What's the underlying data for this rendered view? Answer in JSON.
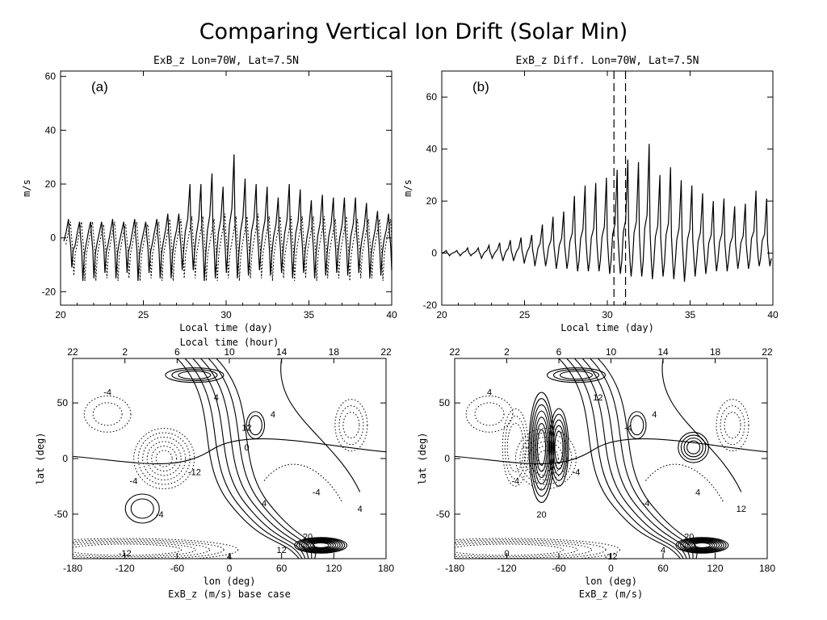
{
  "slide": {
    "title": "Comparing Vertical Ion Drift  (Solar Min)"
  },
  "chart_data": [
    {
      "id": "a",
      "type": "line",
      "panel_label": "(a)",
      "title": "ExB_z Lon=70W, Lat=7.5N",
      "xlabel": "Local time (day)",
      "ylabel": "m/s",
      "xlim": [
        20,
        40
      ],
      "ylim": [
        -25,
        62
      ],
      "xticks": [
        20,
        25,
        30,
        35,
        40
      ],
      "yticks": [
        -20,
        0,
        20,
        40,
        60
      ],
      "peaks_solid": [
        7,
        6,
        6,
        6,
        7,
        6,
        7,
        6,
        7,
        9,
        9,
        20,
        20,
        24,
        19,
        31,
        22,
        20,
        19,
        15,
        20,
        18,
        14,
        16,
        15,
        15,
        15,
        13,
        10,
        9
      ],
      "troughs_solid": [
        -11,
        -16,
        -15,
        -13,
        -15,
        -13,
        -16,
        -13,
        -15,
        -15,
        -12,
        -12,
        -16,
        -15,
        -13,
        -15,
        -14,
        -12,
        -14,
        -13,
        -15,
        -13,
        -15,
        -14,
        -13,
        -14,
        -13,
        -15,
        -14,
        -12
      ],
      "peaks_dashed": [
        6,
        6,
        6,
        5,
        6,
        5,
        6,
        5,
        6,
        7,
        7,
        8,
        8,
        7,
        9,
        8,
        8,
        9,
        8,
        8,
        8,
        8,
        8,
        8,
        7,
        8,
        7,
        7,
        7,
        7
      ],
      "troughs_dashed": [
        -14,
        -16,
        -16,
        -15,
        -16,
        -15,
        -16,
        -15,
        -16,
        -16,
        -15,
        -15,
        -16,
        -16,
        -15,
        -16,
        -15,
        -15,
        -16,
        -15,
        -16,
        -15,
        -16,
        -15,
        -15,
        -16,
        -15,
        -15,
        -16,
        -14
      ],
      "series": [
        {
          "line": "solid"
        },
        {
          "line": "dashed"
        }
      ]
    },
    {
      "id": "b",
      "type": "line",
      "panel_label": "(b)",
      "title": "ExB_z Diff. Lon=70W, Lat=7.5N",
      "xlabel": "Local time (day)",
      "ylabel": "m/s",
      "xlim": [
        20,
        40
      ],
      "ylim": [
        -20,
        70
      ],
      "xticks": [
        20,
        25,
        30,
        35,
        40
      ],
      "yticks": [
        -20,
        0,
        20,
        40,
        60
      ],
      "vlines": [
        30.4,
        31.1
      ],
      "peaks": [
        1,
        1,
        2,
        2,
        3,
        4,
        5,
        6,
        7,
        11,
        14,
        16,
        22,
        26,
        27,
        29,
        32,
        36,
        35,
        42,
        30,
        33,
        28,
        26,
        23,
        20,
        21,
        18,
        19,
        24,
        21
      ],
      "troughs": [
        -1,
        -1,
        -1,
        -2,
        -2,
        -3,
        -3,
        -4,
        -5,
        -5,
        -6,
        -6,
        -7,
        -7,
        -7,
        -8,
        -8,
        -9,
        -9,
        -10,
        -9,
        -10,
        -11,
        -9,
        -8,
        -7,
        -7,
        -6,
        -6,
        -5,
        -5
      ],
      "series": [
        {
          "line": "solid"
        }
      ]
    },
    {
      "id": "c",
      "type": "contour",
      "title": "ExB_z (m/s) base case",
      "xlabel": "lon (deg)",
      "ylabel": "lat (deg)",
      "top_axis_label": "Local time (hour)",
      "xlim": [
        -180,
        180
      ],
      "ylim": [
        -90,
        90
      ],
      "xticks": [
        -180,
        -120,
        -60,
        0,
        60,
        120,
        180
      ],
      "yticks": [
        -50,
        0,
        50
      ],
      "top_ticks": [
        "22",
        "2",
        "6",
        "10",
        "14",
        "18",
        "22"
      ],
      "contour_labels": [
        "4",
        "4",
        "12",
        "-4",
        "-4",
        "-12",
        "-4",
        "4",
        "-4",
        "4",
        "20",
        "12",
        "4",
        "-12",
        "0"
      ],
      "level_step": 4
    },
    {
      "id": "d",
      "type": "contour",
      "title": "ExB_z (m/s)",
      "xlabel": "lon (deg)",
      "ylabel": "lat (deg)",
      "top_axis_label": "",
      "xlim": [
        -180,
        180
      ],
      "ylim": [
        -90,
        90
      ],
      "xticks": [
        -180,
        -120,
        -60,
        0,
        60,
        120,
        180
      ],
      "yticks": [
        -50,
        0,
        50
      ],
      "top_ticks": [
        "22",
        "2",
        "6",
        "10",
        "14",
        "18",
        "22"
      ],
      "contour_labels": [
        "12",
        "4",
        "-4",
        "4",
        "-4",
        "-4",
        "20",
        "-4",
        "4",
        "12",
        "20",
        "4",
        "-12",
        "0"
      ],
      "level_step": 4
    }
  ]
}
